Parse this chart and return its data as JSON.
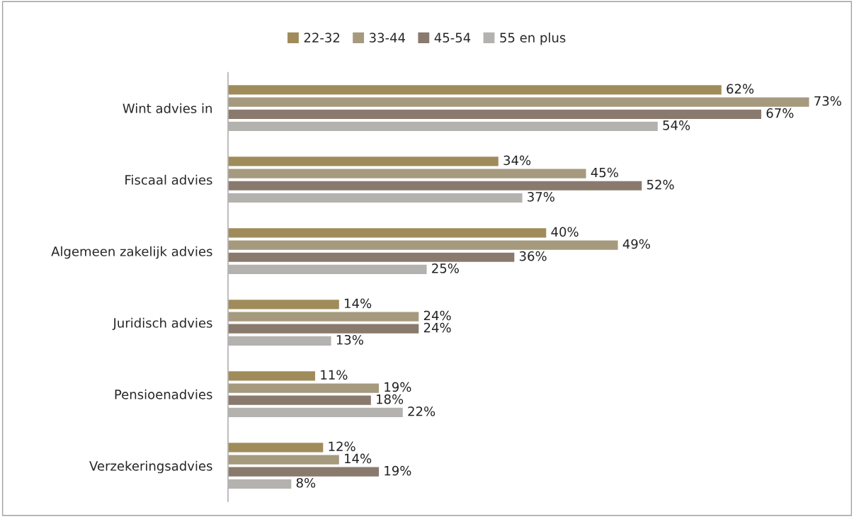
{
  "chart_data": {
    "type": "bar",
    "orientation": "horizontal",
    "legend": "top",
    "tick_labels": "y",
    "categories": [
      "Wint advies in",
      "Fiscaal advies",
      "Algemeen zakelijk advies",
      "Juridisch advies",
      "Pensioenadvies",
      "Verzekeringsadvies"
    ],
    "series": [
      {
        "name": "22-32",
        "color": "#a08c5a",
        "values": [
          62,
          34,
          40,
          14,
          11,
          12
        ],
        "value_labels": [
          "62%",
          "34%",
          "40%",
          "14%",
          "11%",
          "12%"
        ]
      },
      {
        "name": "33-44",
        "color": "#a69a7e",
        "values": [
          73,
          45,
          49,
          24,
          19,
          14
        ],
        "value_labels": [
          "73%",
          "45%",
          "49%",
          "24%",
          "19%",
          "14%"
        ]
      },
      {
        "name": "45-54",
        "color": "#8a7a6e",
        "values": [
          67,
          52,
          36,
          24,
          18,
          19
        ],
        "value_labels": [
          "67%",
          "52%",
          "36%",
          "24%",
          "18%",
          "19%"
        ]
      },
      {
        "name": "55 en plus",
        "color": "#b4b2ae",
        "values": [
          54,
          37,
          25,
          13,
          22,
          8
        ],
        "value_labels": [
          "54%",
          "37%",
          "25%",
          "13%",
          "22%",
          "8%"
        ]
      }
    ]
  }
}
